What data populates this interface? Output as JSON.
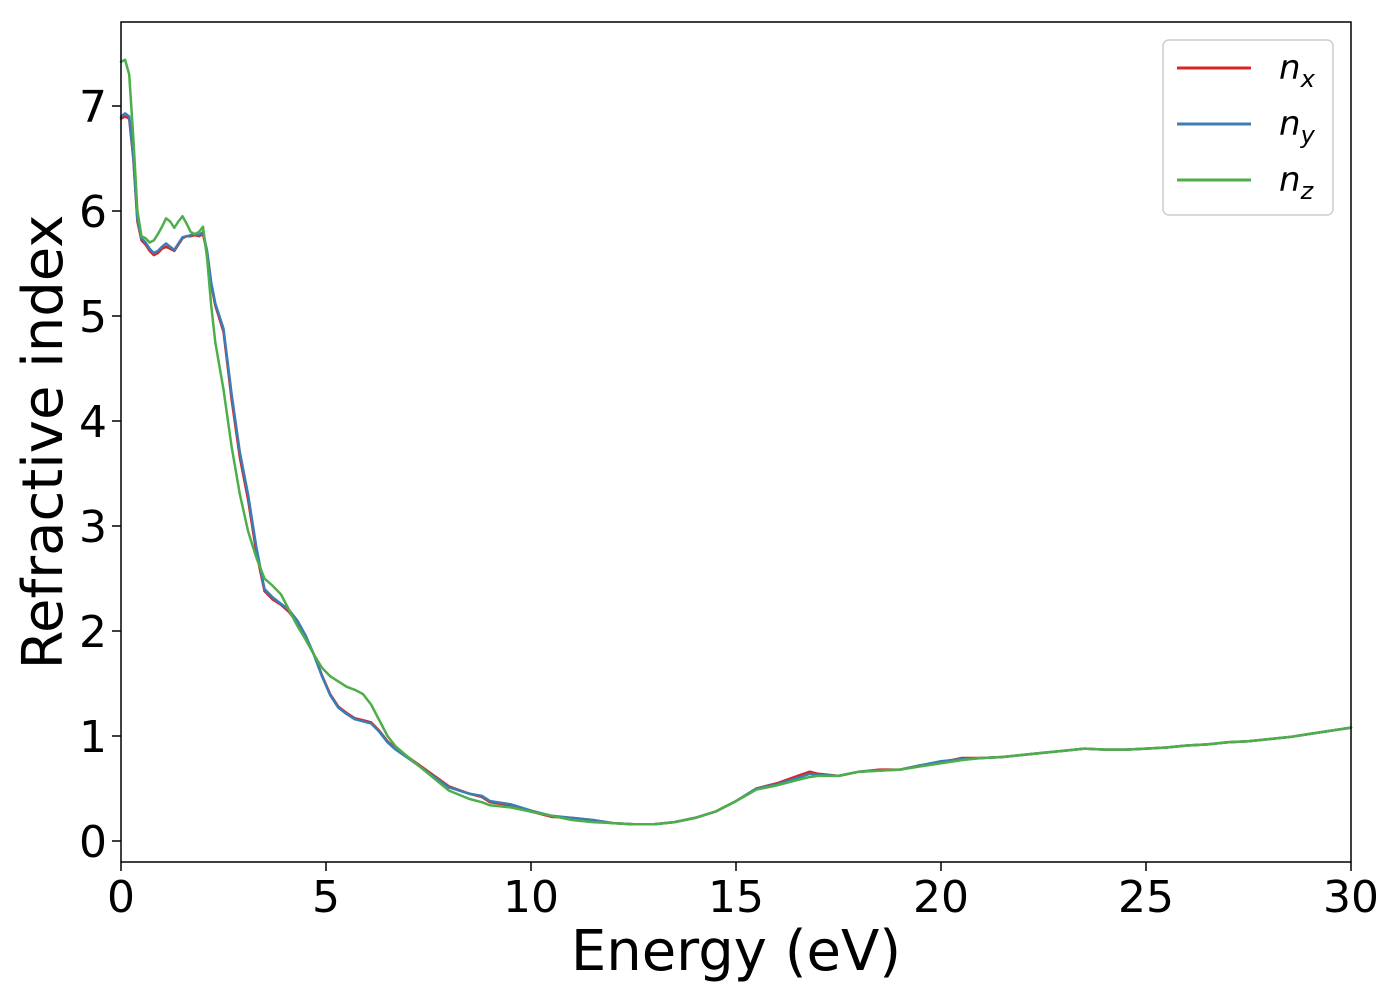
{
  "chart_data": {
    "type": "line",
    "title": "",
    "xlabel": "Energy (eV)",
    "ylabel": "Refractive index",
    "xlim": [
      0,
      30
    ],
    "ylim": [
      -0.2,
      7.8
    ],
    "xticks": [
      0,
      5,
      10,
      15,
      20,
      25,
      30
    ],
    "xtick_labels": [
      "0",
      "5",
      "10",
      "15",
      "20",
      "25",
      "30"
    ],
    "yticks": [
      0,
      1,
      2,
      3,
      4,
      5,
      6,
      7
    ],
    "ytick_labels": [
      "0",
      "1",
      "2",
      "3",
      "4",
      "5",
      "6",
      "7"
    ],
    "grid": false,
    "legend_position": "top-right",
    "series": [
      {
        "name": "n_x",
        "legend_base": "n",
        "legend_sub": "x",
        "color": "#d62728",
        "x": [
          0,
          0.1,
          0.2,
          0.3,
          0.4,
          0.5,
          0.6,
          0.7,
          0.8,
          0.9,
          1.0,
          1.1,
          1.2,
          1.3,
          1.4,
          1.5,
          1.6,
          1.7,
          1.8,
          1.9,
          2.0,
          2.1,
          2.2,
          2.3,
          2.5,
          2.7,
          2.9,
          3.1,
          3.3,
          3.5,
          3.7,
          3.9,
          4.1,
          4.3,
          4.5,
          4.7,
          4.9,
          5.1,
          5.3,
          5.5,
          5.7,
          5.9,
          6.1,
          6.3,
          6.5,
          6.7,
          7.0,
          7.5,
          8.0,
          8.5,
          8.8,
          9.0,
          9.5,
          10.0,
          10.5,
          11.0,
          11.5,
          12.0,
          12.5,
          13.0,
          13.5,
          14.0,
          14.5,
          15.0,
          15.5,
          16.0,
          16.5,
          16.8,
          17.0,
          17.5,
          18.0,
          18.5,
          19.0,
          19.5,
          20.0,
          20.5,
          21.0,
          21.5,
          22.0,
          22.5,
          23.0,
          23.5,
          24.0,
          24.5,
          25.0,
          25.5,
          26.0,
          26.5,
          27.0,
          27.5,
          28.0,
          28.5,
          29.0,
          29.5,
          30.0
        ],
        "y": [
          6.88,
          6.9,
          6.88,
          6.5,
          5.9,
          5.72,
          5.68,
          5.62,
          5.58,
          5.6,
          5.64,
          5.66,
          5.64,
          5.62,
          5.68,
          5.74,
          5.76,
          5.76,
          5.77,
          5.76,
          5.78,
          5.6,
          5.3,
          5.1,
          4.85,
          4.2,
          3.65,
          3.25,
          2.75,
          2.38,
          2.3,
          2.25,
          2.18,
          2.08,
          1.95,
          1.78,
          1.58,
          1.4,
          1.28,
          1.22,
          1.17,
          1.15,
          1.13,
          1.05,
          0.95,
          0.88,
          0.8,
          0.66,
          0.52,
          0.45,
          0.42,
          0.37,
          0.34,
          0.28,
          0.23,
          0.22,
          0.2,
          0.17,
          0.16,
          0.16,
          0.18,
          0.22,
          0.28,
          0.38,
          0.5,
          0.55,
          0.62,
          0.66,
          0.64,
          0.62,
          0.66,
          0.68,
          0.68,
          0.72,
          0.75,
          0.79,
          0.79,
          0.8,
          0.82,
          0.84,
          0.86,
          0.88,
          0.87,
          0.87,
          0.88,
          0.89,
          0.91,
          0.92,
          0.94,
          0.95,
          0.97,
          0.99,
          1.02,
          1.05,
          1.08
        ]
      },
      {
        "name": "n_y",
        "legend_base": "n",
        "legend_sub": "y",
        "color": "#3b7db5",
        "x": [
          0,
          0.1,
          0.2,
          0.3,
          0.4,
          0.5,
          0.6,
          0.7,
          0.8,
          0.9,
          1.0,
          1.1,
          1.2,
          1.3,
          1.4,
          1.5,
          1.6,
          1.7,
          1.8,
          1.9,
          2.0,
          2.1,
          2.2,
          2.3,
          2.5,
          2.7,
          2.9,
          3.1,
          3.3,
          3.5,
          3.7,
          3.9,
          4.1,
          4.3,
          4.5,
          4.7,
          4.9,
          5.1,
          5.3,
          5.5,
          5.7,
          5.9,
          6.1,
          6.3,
          6.5,
          6.7,
          7.0,
          7.5,
          8.0,
          8.5,
          8.8,
          9.0,
          9.5,
          10.0,
          10.5,
          11.0,
          11.5,
          12.0,
          12.5,
          13.0,
          13.5,
          14.0,
          14.5,
          15.0,
          15.5,
          16.0,
          16.5,
          16.8,
          17.0,
          17.5,
          18.0,
          18.5,
          19.0,
          19.5,
          20.0,
          20.5,
          21.0,
          21.5,
          22.0,
          22.5,
          23.0,
          23.5,
          24.0,
          24.5,
          25.0,
          25.5,
          26.0,
          26.5,
          27.0,
          27.5,
          28.0,
          28.5,
          29.0,
          29.5,
          30.0
        ],
        "y": [
          6.9,
          6.93,
          6.9,
          6.52,
          5.92,
          5.74,
          5.7,
          5.64,
          5.6,
          5.62,
          5.66,
          5.69,
          5.66,
          5.63,
          5.69,
          5.75,
          5.76,
          5.77,
          5.78,
          5.77,
          5.8,
          5.62,
          5.32,
          5.12,
          4.88,
          4.25,
          3.7,
          3.3,
          2.8,
          2.4,
          2.32,
          2.26,
          2.2,
          2.1,
          1.96,
          1.78,
          1.57,
          1.39,
          1.27,
          1.21,
          1.16,
          1.14,
          1.12,
          1.04,
          0.94,
          0.87,
          0.79,
          0.65,
          0.51,
          0.45,
          0.43,
          0.38,
          0.35,
          0.29,
          0.24,
          0.22,
          0.2,
          0.17,
          0.16,
          0.16,
          0.18,
          0.22,
          0.28,
          0.38,
          0.5,
          0.54,
          0.6,
          0.64,
          0.63,
          0.62,
          0.66,
          0.67,
          0.68,
          0.72,
          0.76,
          0.78,
          0.79,
          0.8,
          0.82,
          0.84,
          0.86,
          0.88,
          0.87,
          0.87,
          0.88,
          0.89,
          0.91,
          0.92,
          0.94,
          0.95,
          0.97,
          0.99,
          1.02,
          1.05,
          1.08
        ]
      },
      {
        "name": "n_z",
        "legend_base": "n",
        "legend_sub": "z",
        "color": "#4daf4a",
        "x": [
          0,
          0.1,
          0.2,
          0.3,
          0.4,
          0.5,
          0.6,
          0.7,
          0.8,
          0.9,
          1.0,
          1.1,
          1.2,
          1.3,
          1.4,
          1.5,
          1.6,
          1.7,
          1.8,
          1.9,
          2.0,
          2.1,
          2.2,
          2.3,
          2.5,
          2.7,
          2.9,
          3.1,
          3.3,
          3.5,
          3.7,
          3.9,
          4.1,
          4.3,
          4.5,
          4.7,
          4.9,
          5.1,
          5.3,
          5.5,
          5.7,
          5.9,
          6.1,
          6.3,
          6.5,
          6.7,
          7.0,
          7.5,
          8.0,
          8.5,
          8.8,
          9.0,
          9.5,
          10.0,
          10.5,
          11.0,
          11.5,
          12.0,
          12.5,
          13.0,
          13.5,
          14.0,
          14.5,
          15.0,
          15.5,
          16.0,
          16.5,
          16.8,
          17.0,
          17.5,
          18.0,
          18.5,
          19.0,
          19.5,
          20.0,
          20.5,
          21.0,
          21.5,
          22.0,
          22.5,
          23.0,
          23.5,
          24.0,
          24.5,
          25.0,
          25.5,
          26.0,
          26.5,
          27.0,
          27.5,
          28.0,
          28.5,
          29.0,
          29.5,
          30.0
        ],
        "y": [
          7.42,
          7.44,
          7.3,
          6.7,
          6.0,
          5.76,
          5.74,
          5.7,
          5.72,
          5.78,
          5.85,
          5.93,
          5.9,
          5.84,
          5.9,
          5.95,
          5.88,
          5.8,
          5.78,
          5.8,
          5.85,
          5.55,
          5.1,
          4.75,
          4.3,
          3.75,
          3.3,
          2.95,
          2.7,
          2.5,
          2.43,
          2.35,
          2.2,
          2.05,
          1.92,
          1.78,
          1.65,
          1.57,
          1.52,
          1.47,
          1.44,
          1.4,
          1.3,
          1.15,
          1.0,
          0.9,
          0.8,
          0.64,
          0.48,
          0.4,
          0.37,
          0.34,
          0.32,
          0.28,
          0.24,
          0.2,
          0.18,
          0.17,
          0.16,
          0.16,
          0.18,
          0.22,
          0.28,
          0.38,
          0.49,
          0.53,
          0.58,
          0.61,
          0.62,
          0.62,
          0.66,
          0.67,
          0.68,
          0.71,
          0.74,
          0.77,
          0.79,
          0.8,
          0.82,
          0.84,
          0.86,
          0.88,
          0.87,
          0.87,
          0.88,
          0.89,
          0.91,
          0.92,
          0.94,
          0.95,
          0.97,
          0.99,
          1.02,
          1.05,
          1.08
        ]
      }
    ]
  }
}
